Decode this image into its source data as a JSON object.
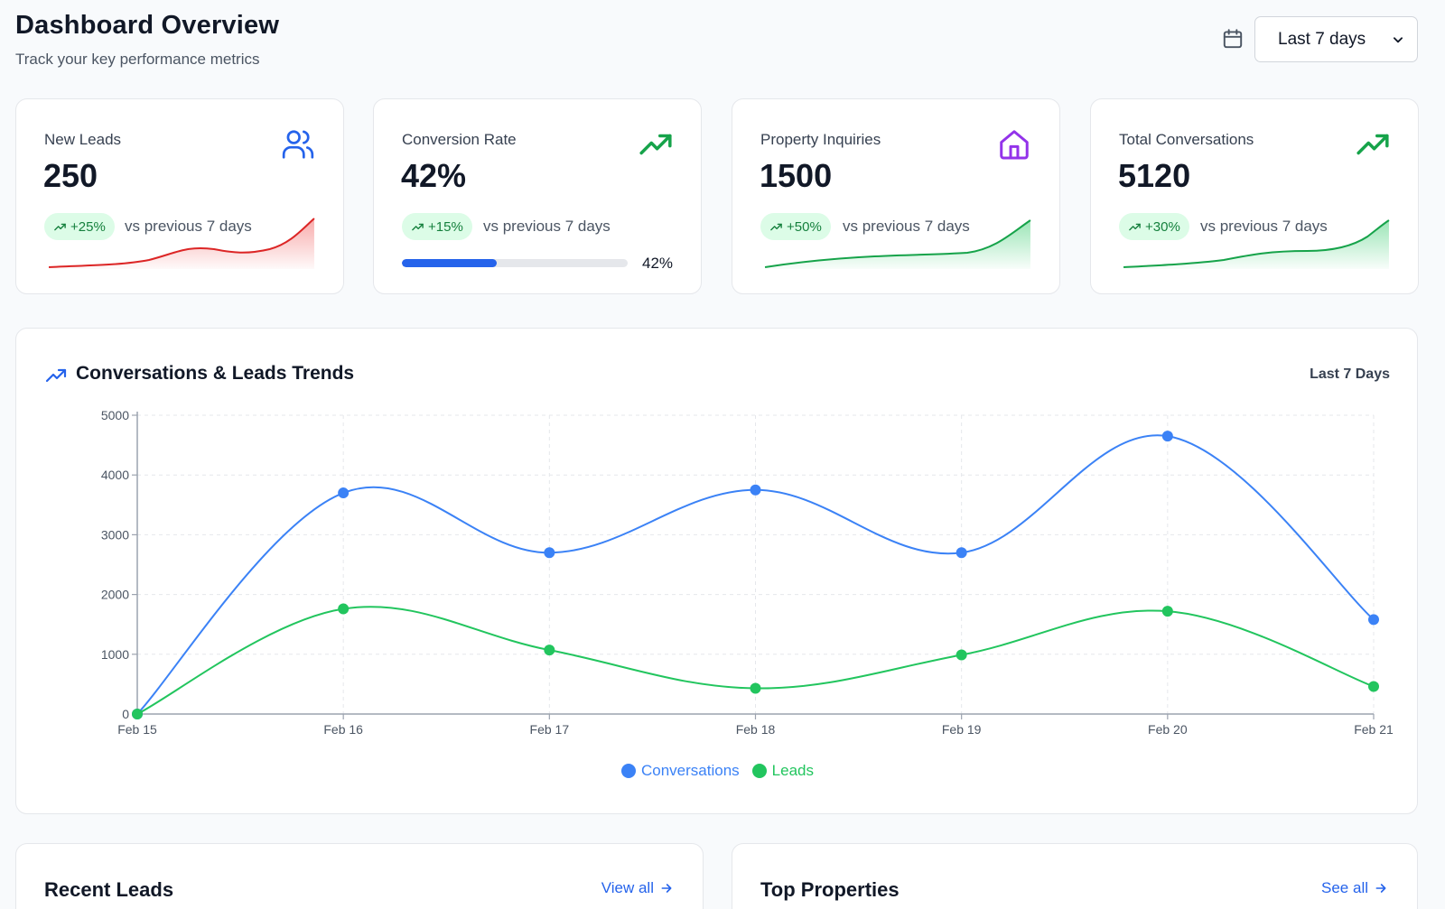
{
  "header": {
    "title": "Dashboard Overview",
    "subtitle": "Track your key performance metrics",
    "range_selected": "Last 7 days"
  },
  "kpis": [
    {
      "label": "New Leads",
      "value": "250",
      "trend": "+25%",
      "compare": "vs previous 7 days",
      "icon": "users-icon",
      "color": "#2563eb",
      "spark_color": "#dc2626"
    },
    {
      "label": "Conversion Rate",
      "value": "42%",
      "trend": "+15%",
      "compare": "vs previous 7 days",
      "icon": "trending-up-icon",
      "color": "#16a34a",
      "progress": 42,
      "progress_label": "42%"
    },
    {
      "label": "Property Inquiries",
      "value": "1500",
      "trend": "+50%",
      "compare": "vs previous 7 days",
      "icon": "home-icon",
      "color": "#9333ea",
      "spark_color": "#16a34a"
    },
    {
      "label": "Total Conversations",
      "value": "5120",
      "trend": "+30%",
      "compare": "vs previous 7 days",
      "icon": "trending-up-icon",
      "color": "#16a34a",
      "spark_color": "#16a34a"
    }
  ],
  "trends": {
    "title": "Conversations & Leads Trends",
    "range": "Last 7 Days"
  },
  "chart_data": {
    "type": "line",
    "title": "Conversations & Leads Trends",
    "categories": [
      "Feb 15",
      "Feb 16",
      "Feb 17",
      "Feb 18",
      "Feb 19",
      "Feb 20",
      "Feb 21"
    ],
    "ylim": [
      0,
      5000
    ],
    "yticks": [
      0,
      1000,
      2000,
      3000,
      4000,
      5000
    ],
    "grid": true,
    "legend": "bottom-center",
    "series": [
      {
        "name": "Conversations",
        "color": "#3b82f6",
        "values": [
          0,
          3700,
          2700,
          3750,
          2700,
          4650,
          1580
        ]
      },
      {
        "name": "Leads",
        "color": "#22c55e",
        "values": [
          0,
          1760,
          1070,
          430,
          990,
          1720,
          460
        ]
      }
    ]
  },
  "bottom": {
    "recent_leads": {
      "title": "Recent Leads",
      "link": "View all"
    },
    "top_properties": {
      "title": "Top Properties",
      "link": "See all"
    }
  }
}
